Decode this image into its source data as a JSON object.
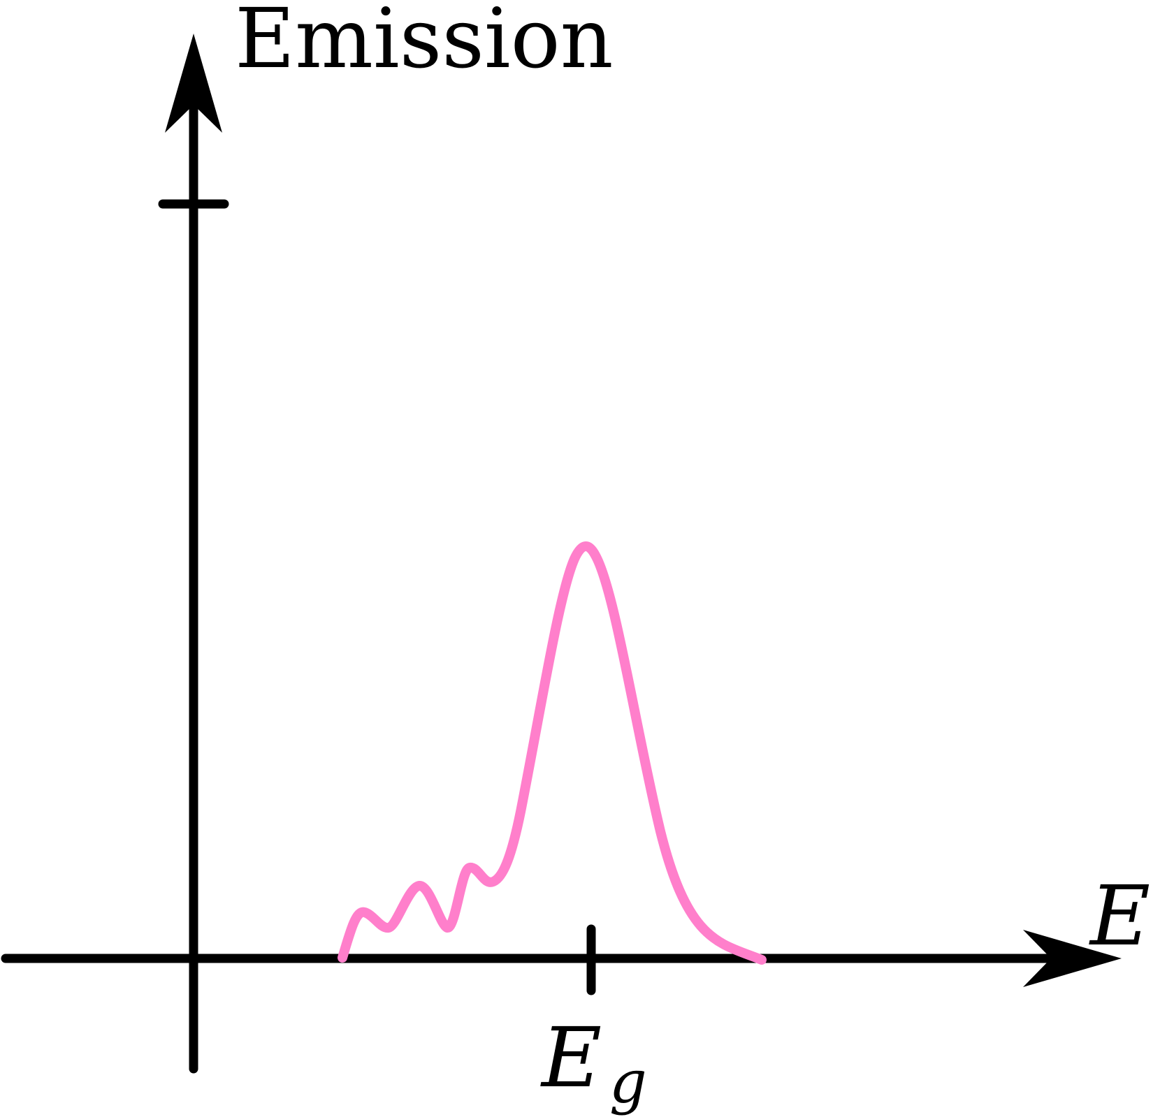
{
  "diagram": {
    "y_axis_label": "Emission",
    "x_axis_label": "E",
    "peak_label_main": "E",
    "peak_label_sub": "g",
    "colors": {
      "axis": "#000000",
      "curve": "#ff7fcb",
      "background": "#ffffff"
    }
  }
}
